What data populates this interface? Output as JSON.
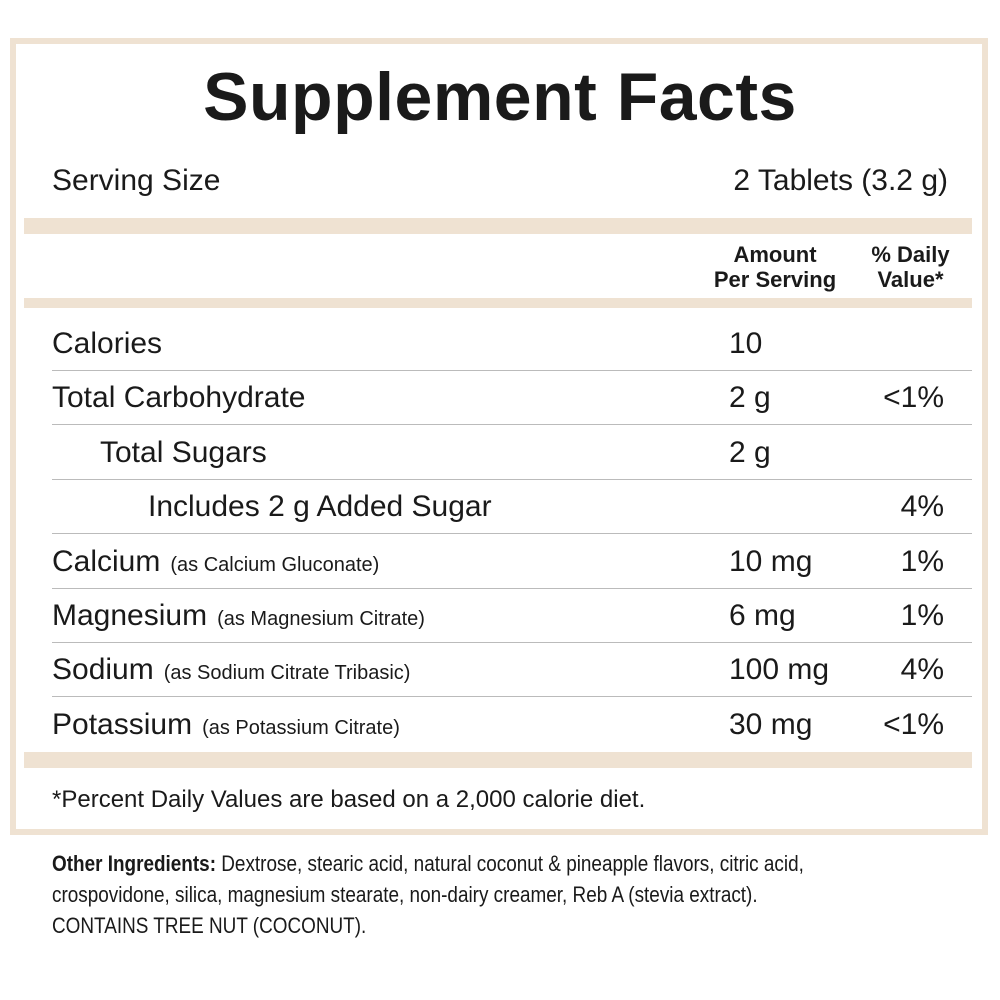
{
  "header": {
    "title": "Supplement Facts",
    "serving_size_label": "Serving Size",
    "serving_size_value": "2 Tablets (3.2 g)"
  },
  "column_headers": {
    "amount": [
      "Amount",
      "Per Serving"
    ],
    "daily_value": [
      "% Daily",
      "Value*"
    ]
  },
  "table": {
    "rows": [
      {
        "name": "Calories",
        "indent": 0,
        "amount": "10"
      },
      {
        "name": "Total Carbohydrate",
        "indent": 0,
        "amount": "2 g",
        "daily_value": "<1%"
      },
      {
        "name": "Total Sugars",
        "indent": 1,
        "amount": "2 g"
      },
      {
        "name": "Includes 2 g Added Sugar",
        "indent": 2,
        "daily_value": "4%"
      },
      {
        "name": "Calcium",
        "note": "(as Calcium Gluconate)",
        "indent": 0,
        "amount": "10 mg",
        "daily_value": "1%"
      },
      {
        "name": "Magnesium",
        "note": "(as Magnesium Citrate)",
        "indent": 0,
        "amount": "6 mg",
        "daily_value": "1%"
      },
      {
        "name": "Sodium",
        "note": "(as Sodium Citrate Tribasic)",
        "indent": 0,
        "amount": "100 mg",
        "daily_value": "4%"
      },
      {
        "name": "Potassium",
        "note": "(as Potassium Citrate)",
        "indent": 0,
        "amount": "30 mg",
        "daily_value": "<1%"
      }
    ]
  },
  "footnote": "*Percent Daily Values are based on a 2,000 calorie diet.",
  "other_ingredients": {
    "label": "Other Ingredients:",
    "lines": [
      "Dextrose, stearic acid, natural coconut & pineapple flavors, citric acid,",
      "crospovidone, silica, magnesium stearate, non-dairy creamer, Reb A (stevia extract).",
      "CONTAINS TREE NUT (COCONUT)."
    ]
  }
}
